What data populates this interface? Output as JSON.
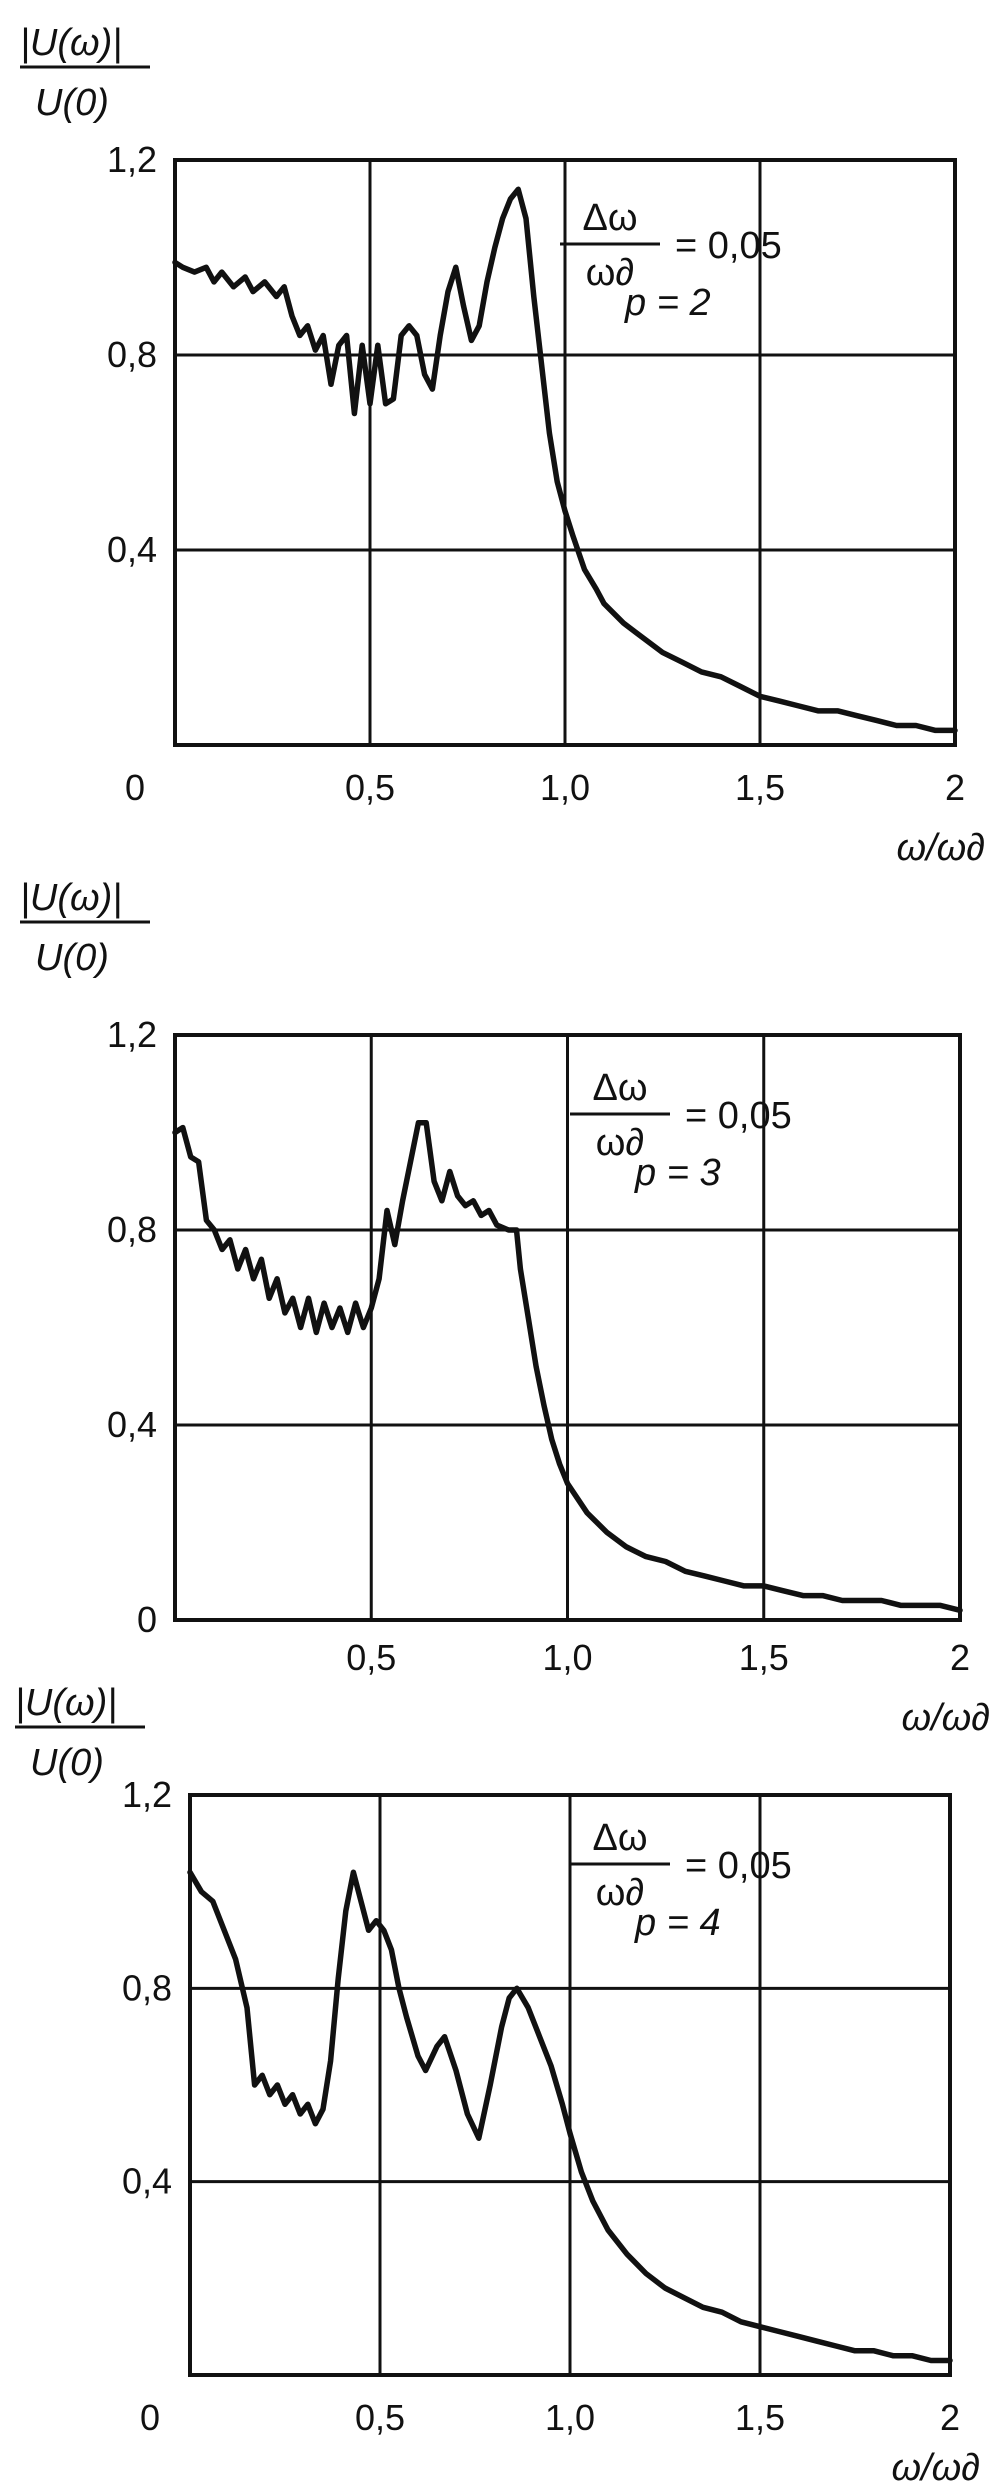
{
  "chart_data": [
    {
      "type": "line",
      "ylabel_num": "|U(ω)|",
      "ylabel_den": "U(0)",
      "xlabel": "ω/ω∂",
      "xlim": [
        0,
        2
      ],
      "ylim": [
        0,
        1.2
      ],
      "xticks": [
        {
          "v": 0,
          "label": "0"
        },
        {
          "v": 0.5,
          "label": "0,5"
        },
        {
          "v": 1.0,
          "label": "1,0"
        },
        {
          "v": 1.5,
          "label": "1,5"
        },
        {
          "v": 2.0,
          "label": "2"
        }
      ],
      "yticks": [
        {
          "v": 0.4,
          "label": "0,4"
        },
        {
          "v": 0.8,
          "label": "0,8"
        },
        {
          "v": 1.2,
          "label": "1,2"
        }
      ],
      "grid": true,
      "annotation": {
        "num": "Δω",
        "den": "ω∂",
        "eq": "= 0,05",
        "param": "p = 2"
      },
      "series": [
        {
          "values": [
            [
              0,
              0.99
            ],
            [
              0.02,
              0.98
            ],
            [
              0.05,
              0.97
            ],
            [
              0.08,
              0.98
            ],
            [
              0.1,
              0.95
            ],
            [
              0.12,
              0.97
            ],
            [
              0.15,
              0.94
            ],
            [
              0.18,
              0.96
            ],
            [
              0.2,
              0.93
            ],
            [
              0.23,
              0.95
            ],
            [
              0.26,
              0.92
            ],
            [
              0.28,
              0.94
            ],
            [
              0.3,
              0.88
            ],
            [
              0.32,
              0.84
            ],
            [
              0.34,
              0.86
            ],
            [
              0.36,
              0.81
            ],
            [
              0.38,
              0.84
            ],
            [
              0.4,
              0.74
            ],
            [
              0.42,
              0.82
            ],
            [
              0.44,
              0.84
            ],
            [
              0.46,
              0.68
            ],
            [
              0.48,
              0.82
            ],
            [
              0.5,
              0.7
            ],
            [
              0.52,
              0.82
            ],
            [
              0.54,
              0.7
            ],
            [
              0.56,
              0.71
            ],
            [
              0.58,
              0.84
            ],
            [
              0.6,
              0.86
            ],
            [
              0.62,
              0.84
            ],
            [
              0.64,
              0.76
            ],
            [
              0.66,
              0.73
            ],
            [
              0.68,
              0.84
            ],
            [
              0.7,
              0.93
            ],
            [
              0.72,
              0.98
            ],
            [
              0.74,
              0.9
            ],
            [
              0.76,
              0.83
            ],
            [
              0.78,
              0.86
            ],
            [
              0.8,
              0.95
            ],
            [
              0.82,
              1.02
            ],
            [
              0.84,
              1.08
            ],
            [
              0.86,
              1.12
            ],
            [
              0.88,
              1.14
            ],
            [
              0.9,
              1.08
            ],
            [
              0.92,
              0.92
            ],
            [
              0.94,
              0.78
            ],
            [
              0.96,
              0.64
            ],
            [
              0.98,
              0.54
            ],
            [
              1.0,
              0.48
            ],
            [
              1.02,
              0.43
            ],
            [
              1.05,
              0.36
            ],
            [
              1.08,
              0.32
            ],
            [
              1.1,
              0.29
            ],
            [
              1.15,
              0.25
            ],
            [
              1.2,
              0.22
            ],
            [
              1.25,
              0.19
            ],
            [
              1.3,
              0.17
            ],
            [
              1.35,
              0.15
            ],
            [
              1.4,
              0.14
            ],
            [
              1.45,
              0.12
            ],
            [
              1.5,
              0.1
            ],
            [
              1.55,
              0.09
            ],
            [
              1.6,
              0.08
            ],
            [
              1.65,
              0.07
            ],
            [
              1.7,
              0.07
            ],
            [
              1.75,
              0.06
            ],
            [
              1.8,
              0.05
            ],
            [
              1.85,
              0.04
            ],
            [
              1.9,
              0.04
            ],
            [
              1.95,
              0.03
            ],
            [
              2.0,
              0.03
            ]
          ]
        }
      ]
    },
    {
      "type": "line",
      "ylabel_num": "|U(ω)|",
      "ylabel_den": "U(0)",
      "xlabel": "ω/ω∂",
      "xlim": [
        0,
        2
      ],
      "ylim": [
        0,
        1.2
      ],
      "xticks": [
        {
          "v": 0.5,
          "label": "0,5"
        },
        {
          "v": 1.0,
          "label": "1,0"
        },
        {
          "v": 1.5,
          "label": "1,5"
        },
        {
          "v": 2.0,
          "label": "2"
        }
      ],
      "yticks": [
        {
          "v": 0,
          "label": "0"
        },
        {
          "v": 0.4,
          "label": "0,4"
        },
        {
          "v": 0.8,
          "label": "0,8"
        },
        {
          "v": 1.2,
          "label": "1,2"
        }
      ],
      "grid": true,
      "annotation": {
        "num": "Δω",
        "den": "ω∂",
        "eq": "= 0,05",
        "param": "p = 3"
      },
      "series": [
        {
          "values": [
            [
              0,
              1.0
            ],
            [
              0.02,
              1.01
            ],
            [
              0.04,
              0.95
            ],
            [
              0.06,
              0.94
            ],
            [
              0.08,
              0.82
            ],
            [
              0.1,
              0.8
            ],
            [
              0.12,
              0.76
            ],
            [
              0.14,
              0.78
            ],
            [
              0.16,
              0.72
            ],
            [
              0.18,
              0.76
            ],
            [
              0.2,
              0.7
            ],
            [
              0.22,
              0.74
            ],
            [
              0.24,
              0.66
            ],
            [
              0.26,
              0.7
            ],
            [
              0.28,
              0.63
            ],
            [
              0.3,
              0.66
            ],
            [
              0.32,
              0.6
            ],
            [
              0.34,
              0.66
            ],
            [
              0.36,
              0.59
            ],
            [
              0.38,
              0.65
            ],
            [
              0.4,
              0.6
            ],
            [
              0.42,
              0.64
            ],
            [
              0.44,
              0.59
            ],
            [
              0.46,
              0.65
            ],
            [
              0.48,
              0.6
            ],
            [
              0.5,
              0.64
            ],
            [
              0.52,
              0.7
            ],
            [
              0.54,
              0.84
            ],
            [
              0.56,
              0.77
            ],
            [
              0.58,
              0.86
            ],
            [
              0.6,
              0.94
            ],
            [
              0.62,
              1.02
            ],
            [
              0.64,
              1.02
            ],
            [
              0.66,
              0.9
            ],
            [
              0.68,
              0.86
            ],
            [
              0.7,
              0.92
            ],
            [
              0.72,
              0.87
            ],
            [
              0.74,
              0.85
            ],
            [
              0.76,
              0.86
            ],
            [
              0.78,
              0.83
            ],
            [
              0.8,
              0.84
            ],
            [
              0.82,
              0.81
            ],
            [
              0.85,
              0.8
            ],
            [
              0.87,
              0.8
            ],
            [
              0.88,
              0.72
            ],
            [
              0.9,
              0.62
            ],
            [
              0.92,
              0.52
            ],
            [
              0.94,
              0.44
            ],
            [
              0.96,
              0.37
            ],
            [
              0.98,
              0.32
            ],
            [
              1.0,
              0.28
            ],
            [
              1.05,
              0.22
            ],
            [
              1.1,
              0.18
            ],
            [
              1.15,
              0.15
            ],
            [
              1.2,
              0.13
            ],
            [
              1.25,
              0.12
            ],
            [
              1.3,
              0.1
            ],
            [
              1.35,
              0.09
            ],
            [
              1.4,
              0.08
            ],
            [
              1.45,
              0.07
            ],
            [
              1.5,
              0.07
            ],
            [
              1.55,
              0.06
            ],
            [
              1.6,
              0.05
            ],
            [
              1.65,
              0.05
            ],
            [
              1.7,
              0.04
            ],
            [
              1.75,
              0.04
            ],
            [
              1.8,
              0.04
            ],
            [
              1.85,
              0.03
            ],
            [
              1.9,
              0.03
            ],
            [
              1.95,
              0.03
            ],
            [
              2.0,
              0.02
            ]
          ]
        }
      ]
    },
    {
      "type": "line",
      "ylabel_num": "|U(ω)|",
      "ylabel_den": "U(0)",
      "xlabel": "ω/ω∂",
      "xlim": [
        0,
        2
      ],
      "ylim": [
        0,
        1.2
      ],
      "xticks": [
        {
          "v": 0,
          "label": "0"
        },
        {
          "v": 0.5,
          "label": "0,5"
        },
        {
          "v": 1.0,
          "label": "1,0"
        },
        {
          "v": 1.5,
          "label": "1,5"
        },
        {
          "v": 2.0,
          "label": "2"
        }
      ],
      "yticks": [
        {
          "v": 0.4,
          "label": "0,4"
        },
        {
          "v": 0.8,
          "label": "0,8"
        },
        {
          "v": 1.2,
          "label": "1,2"
        }
      ],
      "grid": true,
      "annotation": {
        "num": "Δω",
        "den": "ω∂",
        "eq": "= 0,05",
        "param": "p = 4"
      },
      "series": [
        {
          "values": [
            [
              0,
              1.04
            ],
            [
              0.03,
              1.0
            ],
            [
              0.06,
              0.98
            ],
            [
              0.09,
              0.92
            ],
            [
              0.12,
              0.86
            ],
            [
              0.15,
              0.76
            ],
            [
              0.17,
              0.6
            ],
            [
              0.19,
              0.62
            ],
            [
              0.21,
              0.58
            ],
            [
              0.23,
              0.6
            ],
            [
              0.25,
              0.56
            ],
            [
              0.27,
              0.58
            ],
            [
              0.29,
              0.54
            ],
            [
              0.31,
              0.56
            ],
            [
              0.33,
              0.52
            ],
            [
              0.35,
              0.55
            ],
            [
              0.37,
              0.65
            ],
            [
              0.39,
              0.82
            ],
            [
              0.41,
              0.96
            ],
            [
              0.43,
              1.04
            ],
            [
              0.45,
              0.98
            ],
            [
              0.47,
              0.92
            ],
            [
              0.49,
              0.94
            ],
            [
              0.51,
              0.92
            ],
            [
              0.53,
              0.88
            ],
            [
              0.55,
              0.8
            ],
            [
              0.57,
              0.74
            ],
            [
              0.6,
              0.66
            ],
            [
              0.62,
              0.63
            ],
            [
              0.65,
              0.68
            ],
            [
              0.67,
              0.7
            ],
            [
              0.7,
              0.63
            ],
            [
              0.73,
              0.54
            ],
            [
              0.76,
              0.49
            ],
            [
              0.79,
              0.6
            ],
            [
              0.82,
              0.72
            ],
            [
              0.84,
              0.78
            ],
            [
              0.86,
              0.8
            ],
            [
              0.89,
              0.76
            ],
            [
              0.92,
              0.7
            ],
            [
              0.95,
              0.64
            ],
            [
              0.98,
              0.56
            ],
            [
              1.0,
              0.5
            ],
            [
              1.03,
              0.42
            ],
            [
              1.06,
              0.36
            ],
            [
              1.1,
              0.3
            ],
            [
              1.15,
              0.25
            ],
            [
              1.2,
              0.21
            ],
            [
              1.25,
              0.18
            ],
            [
              1.3,
              0.16
            ],
            [
              1.35,
              0.14
            ],
            [
              1.4,
              0.13
            ],
            [
              1.45,
              0.11
            ],
            [
              1.5,
              0.1
            ],
            [
              1.55,
              0.09
            ],
            [
              1.6,
              0.08
            ],
            [
              1.65,
              0.07
            ],
            [
              1.7,
              0.06
            ],
            [
              1.75,
              0.05
            ],
            [
              1.8,
              0.05
            ],
            [
              1.85,
              0.04
            ],
            [
              1.9,
              0.04
            ],
            [
              1.95,
              0.03
            ],
            [
              2.0,
              0.03
            ]
          ]
        }
      ]
    }
  ]
}
